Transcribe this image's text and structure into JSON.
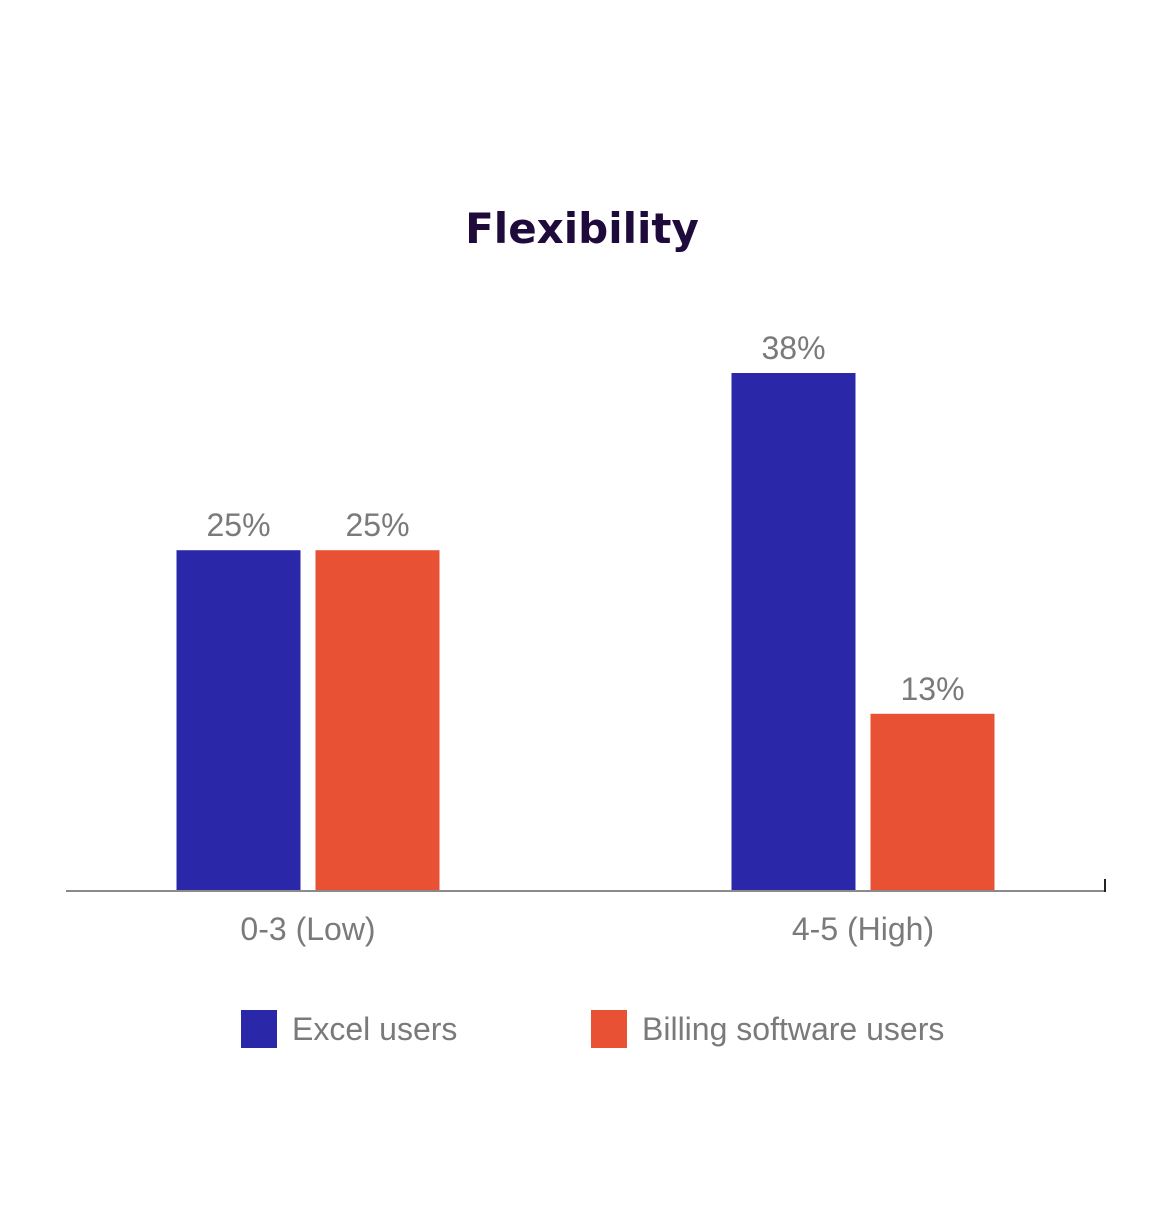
{
  "chart_data": {
    "type": "bar",
    "title": "Flexibility",
    "categories": [
      "0-3 (Low)",
      "4-5 (High)"
    ],
    "series": [
      {
        "name": "Excel users",
        "values": [
          25,
          38
        ],
        "labels": [
          "25%",
          "38%"
        ],
        "color": "#2a28a8"
      },
      {
        "name": "Billing software users",
        "values": [
          25,
          13
        ],
        "labels": [
          "25%",
          "13%"
        ],
        "color": "#e85134"
      }
    ],
    "ylim": [
      0,
      38
    ],
    "grid": false,
    "legend": "bottom",
    "axis_color": "#8a8a8a",
    "title_color": "#1f0a3c",
    "label_color": "#7a7a7a"
  }
}
